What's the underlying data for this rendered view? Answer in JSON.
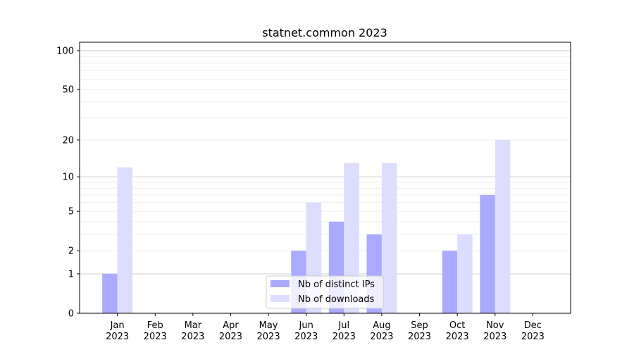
{
  "chart_data": {
    "type": "bar",
    "title": "statnet.common 2023",
    "xlabel": "",
    "ylabel": "",
    "y_scale": "log10(1+y)",
    "ylim": [
      0,
      116
    ],
    "y_ticks": [
      0,
      1,
      2,
      5,
      10,
      20,
      50,
      100
    ],
    "grid": "horizontal, major at 1/10/100, minor between",
    "legend_placement": "lower-center",
    "categories": [
      [
        "Jan",
        "2023"
      ],
      [
        "Feb",
        "2023"
      ],
      [
        "Mar",
        "2023"
      ],
      [
        "Apr",
        "2023"
      ],
      [
        "May",
        "2023"
      ],
      [
        "Jun",
        "2023"
      ],
      [
        "Jul",
        "2023"
      ],
      [
        "Aug",
        "2023"
      ],
      [
        "Sep",
        "2023"
      ],
      [
        "Oct",
        "2023"
      ],
      [
        "Nov",
        "2023"
      ],
      [
        "Dec",
        "2023"
      ]
    ],
    "series": [
      {
        "name": "Nb of distinct IPs",
        "color": "#aaaaff",
        "values": [
          1,
          0,
          0,
          0,
          0,
          2,
          4,
          3,
          0,
          2,
          7,
          0
        ]
      },
      {
        "name": "Nb of downloads",
        "color": "#ddddff",
        "values": [
          12,
          0,
          0,
          0,
          0,
          6,
          13,
          13,
          0,
          3,
          20,
          0
        ]
      }
    ]
  }
}
